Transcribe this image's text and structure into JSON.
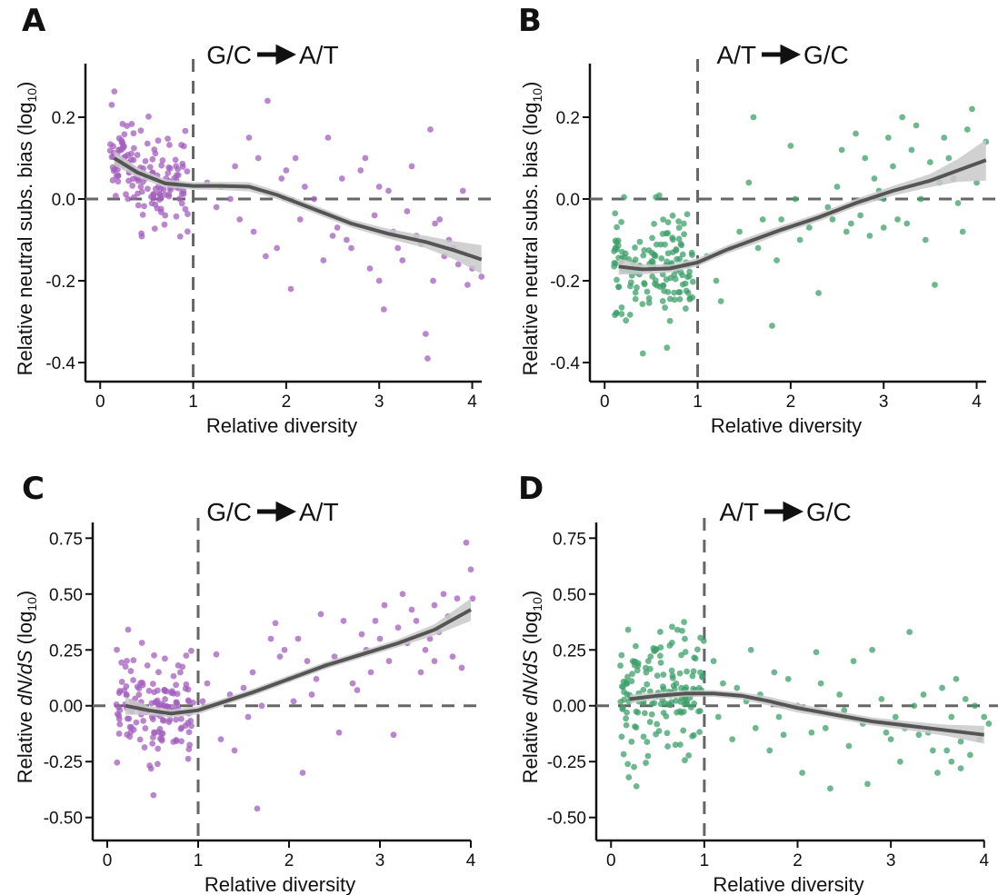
{
  "colors": {
    "purple": "#a35fbd",
    "green": "#3da06b",
    "fit": "#555555",
    "band": "#c9c9c9"
  },
  "chart_data": [
    {
      "panel": "A",
      "type": "scatter",
      "title_left": "G/C",
      "title_right": "A/T",
      "arrow": "arrow-icon",
      "xlabel": "Relative diversity",
      "ylabel_main": "Relative neutral subs. bias (log",
      "ylabel_sub": "10",
      "ylabel_end": ")",
      "xlim": [
        -0.1,
        4.2
      ],
      "ylim": [
        -0.42,
        0.32
      ],
      "xticks": [
        0,
        1,
        2,
        3,
        4
      ],
      "xtick_labels": [
        "0",
        "1",
        "2",
        "3",
        "4"
      ],
      "yticks": [
        -0.4,
        -0.2,
        0.0,
        0.2
      ],
      "ytick_labels": [
        "-0.4",
        "-0.2",
        "0.0",
        "0.2"
      ],
      "ref_x": 1,
      "ref_y": 0,
      "color": "purple",
      "fit": [
        [
          0.15,
          0.1
        ],
        [
          0.4,
          0.065
        ],
        [
          0.7,
          0.038
        ],
        [
          1.0,
          0.032
        ],
        [
          1.3,
          0.032
        ],
        [
          1.6,
          0.03
        ],
        [
          1.9,
          0.01
        ],
        [
          2.3,
          -0.025
        ],
        [
          2.7,
          -0.06
        ],
        [
          3.1,
          -0.085
        ],
        [
          3.5,
          -0.105
        ],
        [
          3.8,
          -0.125
        ],
        [
          4.1,
          -0.148
        ]
      ],
      "band_halfwidth": [
        0.018,
        0.012,
        0.01,
        0.009,
        0.01,
        0.011,
        0.01,
        0.01,
        0.01,
        0.012,
        0.015,
        0.022,
        0.035
      ],
      "cluster": {
        "xmin": 0.1,
        "xmax": 0.95,
        "n": 150,
        "sd": 0.055
      },
      "points": [
        [
          1.25,
          -0.02
        ],
        [
          1.45,
          0.08
        ],
        [
          1.6,
          0.15
        ],
        [
          1.7,
          0.1
        ],
        [
          1.78,
          -0.14
        ],
        [
          1.8,
          0.24
        ],
        [
          1.95,
          0.05
        ],
        [
          2.05,
          -0.22
        ],
        [
          2.1,
          0.1
        ],
        [
          2.2,
          0.03
        ],
        [
          2.3,
          0.0
        ],
        [
          2.45,
          0.15
        ],
        [
          2.55,
          -0.07
        ],
        [
          2.7,
          -0.12
        ],
        [
          2.85,
          0.1
        ],
        [
          2.95,
          -0.04
        ],
        [
          3.0,
          -0.2
        ],
        [
          3.05,
          -0.27
        ],
        [
          3.1,
          0.02
        ],
        [
          3.2,
          -0.12
        ],
        [
          3.3,
          -0.03
        ],
        [
          3.4,
          -0.09
        ],
        [
          3.5,
          -0.33
        ],
        [
          3.52,
          -0.39
        ],
        [
          3.55,
          0.17
        ],
        [
          3.65,
          -0.05
        ],
        [
          3.75,
          -0.1
        ],
        [
          3.85,
          -0.16
        ],
        [
          3.95,
          -0.21
        ],
        [
          4.1,
          -0.19
        ],
        [
          2.4,
          -0.15
        ],
        [
          2.6,
          0.05
        ],
        [
          1.5,
          -0.05
        ],
        [
          1.3,
          0.03
        ],
        [
          3.25,
          -0.15
        ],
        [
          3.6,
          -0.06
        ],
        [
          2.9,
          -0.17
        ],
        [
          1.9,
          -0.12
        ],
        [
          1.15,
          0.04
        ],
        [
          2.8,
          0.07
        ],
        [
          3.45,
          -0.11
        ],
        [
          3.9,
          0.02
        ],
        [
          1.65,
          -0.08
        ],
        [
          2.15,
          -0.05
        ],
        [
          3.15,
          -0.08
        ],
        [
          3.35,
          0.08
        ],
        [
          2.65,
          -0.1
        ],
        [
          3.7,
          -0.14
        ],
        [
          2.0,
          0.07
        ],
        [
          3.8,
          -0.12
        ],
        [
          4.0,
          -0.17
        ],
        [
          1.4,
          0.0
        ],
        [
          2.5,
          -0.09
        ],
        [
          3.0,
          0.03
        ],
        [
          3.58,
          -0.2
        ]
      ]
    },
    {
      "panel": "B",
      "type": "scatter",
      "title_left": "A/T",
      "title_right": "G/C",
      "arrow": "arrow-icon",
      "xlabel": "Relative diversity",
      "ylabel_main": "Relative neutral subs. bias (log",
      "ylabel_sub": "10",
      "ylabel_end": ")",
      "xlim": [
        -0.1,
        4.2
      ],
      "ylim": [
        -0.42,
        0.32
      ],
      "xticks": [
        0,
        1,
        2,
        3,
        4
      ],
      "xtick_labels": [
        "0",
        "1",
        "2",
        "3",
        "4"
      ],
      "yticks": [
        -0.4,
        -0.2,
        0.0,
        0.2
      ],
      "ytick_labels": [
        "-0.4",
        "-0.2",
        "0.0",
        "0.2"
      ],
      "ref_x": 1,
      "ref_y": 0,
      "color": "green",
      "fit": [
        [
          0.15,
          -0.165
        ],
        [
          0.4,
          -0.172
        ],
        [
          0.7,
          -0.17
        ],
        [
          1.0,
          -0.155
        ],
        [
          1.3,
          -0.125
        ],
        [
          1.6,
          -0.1
        ],
        [
          1.9,
          -0.075
        ],
        [
          2.3,
          -0.045
        ],
        [
          2.7,
          -0.01
        ],
        [
          3.1,
          0.02
        ],
        [
          3.5,
          0.045
        ],
        [
          3.8,
          0.07
        ],
        [
          4.1,
          0.095
        ]
      ],
      "band_halfwidth": [
        0.02,
        0.012,
        0.01,
        0.01,
        0.01,
        0.011,
        0.01,
        0.01,
        0.01,
        0.012,
        0.016,
        0.028,
        0.05
      ],
      "cluster": {
        "xmin": 0.1,
        "xmax": 0.95,
        "n": 150,
        "sd": 0.06
      },
      "points": [
        [
          1.1,
          -0.14
        ],
        [
          1.2,
          -0.2
        ],
        [
          1.35,
          -0.12
        ],
        [
          1.45,
          -0.08
        ],
        [
          1.55,
          0.04
        ],
        [
          1.6,
          0.2
        ],
        [
          1.7,
          -0.05
        ],
        [
          1.8,
          -0.31
        ],
        [
          1.85,
          -0.15
        ],
        [
          1.9,
          -0.05
        ],
        [
          2.0,
          0.13
        ],
        [
          2.1,
          -0.1
        ],
        [
          2.2,
          -0.07
        ],
        [
          2.3,
          -0.23
        ],
        [
          2.4,
          -0.02
        ],
        [
          2.5,
          0.03
        ],
        [
          2.6,
          -0.08
        ],
        [
          2.7,
          0.16
        ],
        [
          2.8,
          0.1
        ],
        [
          2.9,
          0.05
        ],
        [
          3.0,
          -0.07
        ],
        [
          3.05,
          0.15
        ],
        [
          3.1,
          0.08
        ],
        [
          3.2,
          0.2
        ],
        [
          3.25,
          -0.06
        ],
        [
          3.3,
          0.12
        ],
        [
          3.4,
          0.0
        ],
        [
          3.5,
          0.09
        ],
        [
          3.55,
          -0.21
        ],
        [
          3.6,
          0.04
        ],
        [
          3.7,
          0.1
        ],
        [
          3.8,
          -0.01
        ],
        [
          3.9,
          0.17
        ],
        [
          3.95,
          0.22
        ],
        [
          4.0,
          0.04
        ],
        [
          4.1,
          0.14
        ],
        [
          2.75,
          -0.04
        ],
        [
          2.95,
          0.02
        ],
        [
          3.15,
          -0.05
        ],
        [
          3.45,
          -0.1
        ],
        [
          3.65,
          0.15
        ],
        [
          3.85,
          -0.08
        ],
        [
          2.55,
          0.12
        ],
        [
          2.85,
          -0.09
        ],
        [
          3.35,
          0.18
        ],
        [
          1.25,
          -0.25
        ],
        [
          1.65,
          -0.12
        ],
        [
          2.05,
          0.0
        ],
        [
          2.45,
          -0.05
        ],
        [
          3.75,
          0.05
        ],
        [
          2.65,
          -0.06
        ],
        [
          3.0,
          0.0
        ]
      ]
    },
    {
      "panel": "C",
      "type": "scatter",
      "title_left": "G/C",
      "title_right": "A/T",
      "arrow": "arrow-icon",
      "xlabel": "Relative diversity",
      "ylabel_main": "Relative ",
      "ylabel_italic": "dN/dS",
      "ylabel_rest": " (log",
      "ylabel_sub": "10",
      "ylabel_end": ")",
      "xlim": [
        -0.1,
        4.1
      ],
      "ylim": [
        -0.55,
        0.8
      ],
      "xticks": [
        0,
        1,
        2,
        3,
        4
      ],
      "xtick_labels": [
        "0",
        "1",
        "2",
        "3",
        "4"
      ],
      "yticks": [
        -0.5,
        -0.25,
        0.0,
        0.25,
        0.5,
        0.75
      ],
      "ytick_labels": [
        "-0.50",
        "-0.25",
        "0.00",
        "0.25",
        "0.50",
        "0.75"
      ],
      "ref_x": 1,
      "ref_y": 0,
      "color": "purple",
      "fit": [
        [
          0.2,
          0.0
        ],
        [
          0.45,
          -0.02
        ],
        [
          0.7,
          -0.035
        ],
        [
          1.0,
          -0.02
        ],
        [
          1.3,
          0.02
        ],
        [
          1.6,
          0.06
        ],
        [
          2.0,
          0.12
        ],
        [
          2.4,
          0.18
        ],
        [
          2.8,
          0.23
        ],
        [
          3.2,
          0.28
        ],
        [
          3.6,
          0.34
        ],
        [
          4.0,
          0.43
        ]
      ],
      "band_halfwidth": [
        0.04,
        0.02,
        0.018,
        0.018,
        0.016,
        0.016,
        0.016,
        0.016,
        0.016,
        0.018,
        0.025,
        0.05
      ],
      "cluster": {
        "xmin": 0.1,
        "xmax": 0.95,
        "n": 150,
        "sd": 0.12
      },
      "points": [
        [
          1.05,
          0.02
        ],
        [
          1.1,
          0.1
        ],
        [
          1.2,
          0.23
        ],
        [
          1.25,
          -0.15
        ],
        [
          1.35,
          0.05
        ],
        [
          1.4,
          -0.2
        ],
        [
          1.5,
          0.08
        ],
        [
          1.6,
          0.15
        ],
        [
          1.65,
          -0.46
        ],
        [
          1.7,
          0.0
        ],
        [
          1.8,
          0.3
        ],
        [
          1.85,
          0.37
        ],
        [
          1.9,
          0.22
        ],
        [
          2.0,
          0.12
        ],
        [
          2.1,
          0.3
        ],
        [
          2.15,
          -0.3
        ],
        [
          2.2,
          0.2
        ],
        [
          2.25,
          0.05
        ],
        [
          2.3,
          0.12
        ],
        [
          2.4,
          0.18
        ],
        [
          2.5,
          0.22
        ],
        [
          2.55,
          -0.12
        ],
        [
          2.6,
          0.38
        ],
        [
          2.7,
          0.1
        ],
        [
          2.8,
          0.32
        ],
        [
          2.85,
          0.25
        ],
        [
          2.9,
          0.15
        ],
        [
          3.0,
          0.3
        ],
        [
          3.05,
          0.45
        ],
        [
          3.1,
          0.2
        ],
        [
          3.15,
          -0.13
        ],
        [
          3.2,
          0.35
        ],
        [
          3.25,
          0.5
        ],
        [
          3.3,
          0.28
        ],
        [
          3.35,
          0.43
        ],
        [
          3.4,
          0.38
        ],
        [
          3.5,
          0.25
        ],
        [
          3.55,
          0.3
        ],
        [
          3.6,
          0.45
        ],
        [
          3.65,
          0.33
        ],
        [
          3.7,
          0.5
        ],
        [
          3.75,
          0.4
        ],
        [
          3.8,
          0.22
        ],
        [
          3.85,
          0.48
        ],
        [
          3.9,
          0.17
        ],
        [
          3.95,
          0.73
        ],
        [
          4.0,
          0.61
        ],
        [
          4.02,
          0.48
        ],
        [
          2.35,
          0.41
        ],
        [
          2.75,
          0.07
        ],
        [
          3.45,
          0.15
        ],
        [
          2.05,
          0.02
        ],
        [
          1.55,
          -0.05
        ],
        [
          2.95,
          0.38
        ],
        [
          3.6,
          0.2
        ],
        [
          1.95,
          0.25
        ]
      ]
    },
    {
      "panel": "D",
      "type": "scatter",
      "title_left": "A/T",
      "title_right": "G/C",
      "arrow": "arrow-icon",
      "xlabel": "Relative diversity",
      "ylabel_main": "Relative ",
      "ylabel_italic": "dN/dS",
      "ylabel_rest": " (log",
      "ylabel_sub": "10",
      "ylabel_end": ")",
      "xlim": [
        -0.1,
        4.1
      ],
      "ylim": [
        -0.55,
        0.8
      ],
      "xticks": [
        0,
        1,
        2,
        3,
        4
      ],
      "xtick_labels": [
        "0",
        "1",
        "2",
        "3",
        "4"
      ],
      "yticks": [
        -0.5,
        -0.25,
        0.0,
        0.25,
        0.5,
        0.75
      ],
      "ytick_labels": [
        "-0.50",
        "-0.25",
        "0.00",
        "0.25",
        "0.50",
        "0.75"
      ],
      "ref_x": 1,
      "ref_y": 0,
      "color": "green",
      "fit": [
        [
          0.2,
          0.03
        ],
        [
          0.5,
          0.045
        ],
        [
          0.8,
          0.055
        ],
        [
          1.1,
          0.055
        ],
        [
          1.4,
          0.045
        ],
        [
          1.7,
          0.02
        ],
        [
          2.0,
          -0.01
        ],
        [
          2.4,
          -0.04
        ],
        [
          2.8,
          -0.07
        ],
        [
          3.2,
          -0.09
        ],
        [
          3.6,
          -0.11
        ],
        [
          4.0,
          -0.13
        ]
      ],
      "band_halfwidth": [
        0.02,
        0.015,
        0.015,
        0.015,
        0.016,
        0.02,
        0.02,
        0.018,
        0.018,
        0.02,
        0.025,
        0.04
      ],
      "cluster": {
        "xmin": 0.1,
        "xmax": 1.0,
        "n": 160,
        "sd": 0.13
      },
      "points": [
        [
          1.1,
          0.2
        ],
        [
          1.15,
          -0.05
        ],
        [
          1.2,
          0.1
        ],
        [
          1.3,
          -0.15
        ],
        [
          1.35,
          0.08
        ],
        [
          1.45,
          0.02
        ],
        [
          1.5,
          0.25
        ],
        [
          1.55,
          -0.1
        ],
        [
          1.6,
          0.05
        ],
        [
          1.7,
          -0.2
        ],
        [
          1.75,
          0.15
        ],
        [
          1.8,
          -0.05
        ],
        [
          1.9,
          0.12
        ],
        [
          2.0,
          0.0
        ],
        [
          2.05,
          -0.3
        ],
        [
          2.2,
          0.24
        ],
        [
          2.3,
          -0.1
        ],
        [
          2.35,
          -0.37
        ],
        [
          2.45,
          0.05
        ],
        [
          2.55,
          -0.18
        ],
        [
          2.6,
          0.2
        ],
        [
          2.7,
          -0.08
        ],
        [
          2.75,
          -0.35
        ],
        [
          2.8,
          0.25
        ],
        [
          2.9,
          0.03
        ],
        [
          3.0,
          -0.15
        ],
        [
          3.05,
          -0.05
        ],
        [
          3.1,
          -0.25
        ],
        [
          3.15,
          -0.1
        ],
        [
          3.2,
          0.33
        ],
        [
          3.3,
          -0.13
        ],
        [
          3.35,
          0.05
        ],
        [
          3.45,
          -0.2
        ],
        [
          3.5,
          -0.3
        ],
        [
          3.55,
          0.08
        ],
        [
          3.6,
          -0.2
        ],
        [
          3.65,
          -0.05
        ],
        [
          3.7,
          0.12
        ],
        [
          3.75,
          -0.28
        ],
        [
          3.8,
          0.03
        ],
        [
          3.85,
          -0.22
        ],
        [
          3.9,
          0.0
        ],
        [
          3.95,
          -0.15
        ],
        [
          4.0,
          -0.05
        ],
        [
          4.05,
          -0.08
        ],
        [
          2.15,
          -0.12
        ],
        [
          2.5,
          -0.02
        ],
        [
          2.95,
          -0.12
        ],
        [
          3.25,
          0.0
        ],
        [
          3.4,
          -0.12
        ],
        [
          1.85,
          -0.13
        ],
        [
          2.25,
          0.1
        ],
        [
          3.75,
          -0.16
        ],
        [
          3.65,
          -0.25
        ]
      ]
    }
  ]
}
